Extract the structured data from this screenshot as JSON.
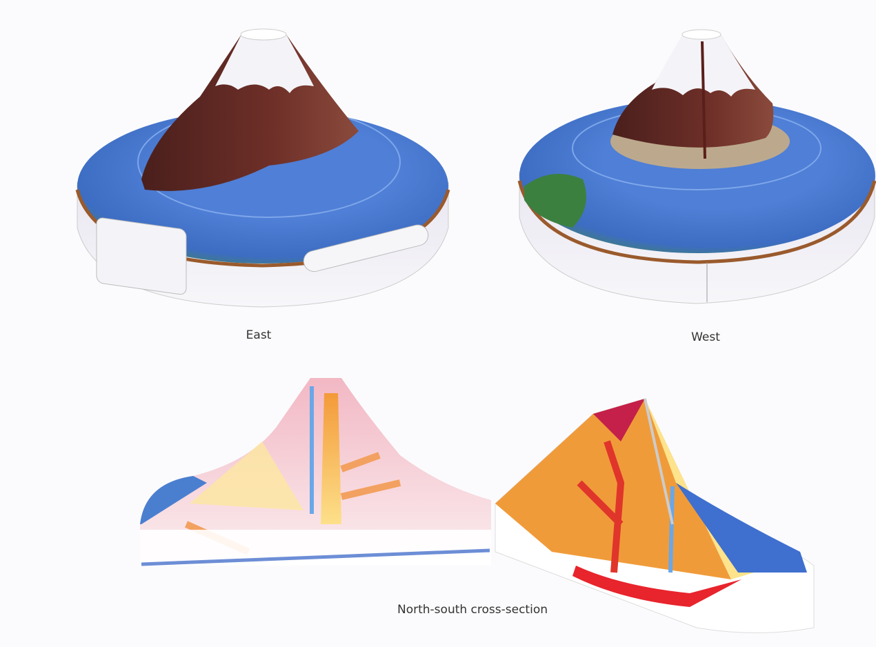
{
  "labels": {
    "east": "East",
    "west": "West",
    "cross_section": "North-south cross-section"
  }
}
